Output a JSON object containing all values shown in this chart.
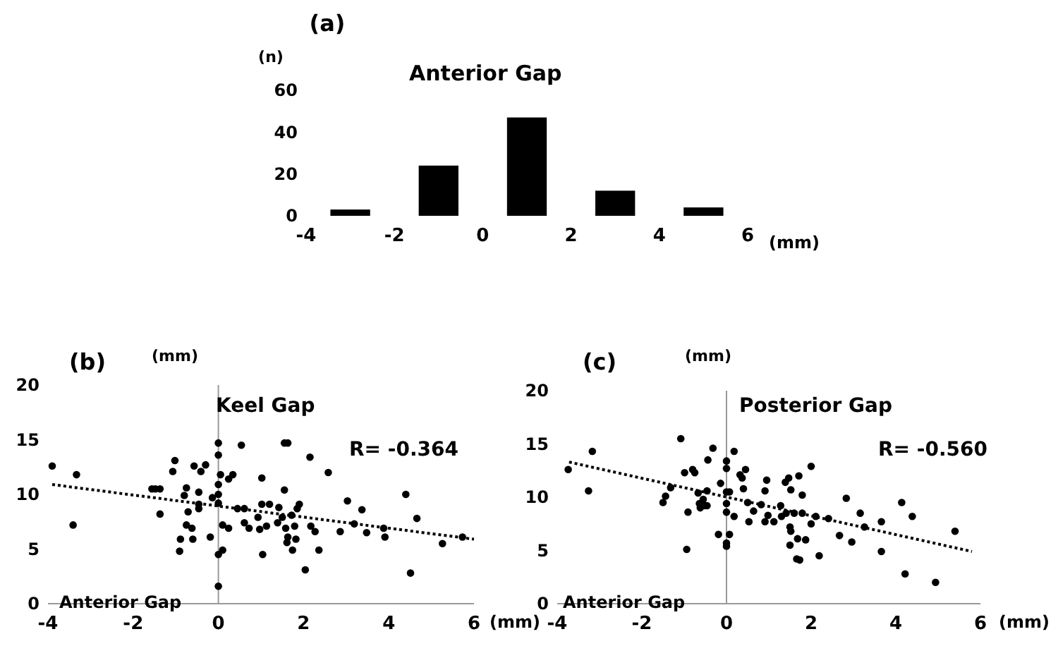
{
  "chart_data": [
    {
      "type": "histogram",
      "title": "Anterior Gap",
      "ylabel": "(n)",
      "xlabel": "(mm)",
      "annotations": [
        "(a)"
      ],
      "bins": [
        -4,
        -2,
        0,
        2,
        4,
        6
      ],
      "values": [
        3,
        24,
        47,
        12,
        4
      ],
      "color": "#000000",
      "xlim": [
        -4,
        6
      ],
      "xticks": [
        -4,
        -2,
        0,
        2,
        4,
        6
      ],
      "ylim": [
        0,
        60
      ],
      "yticks": [
        0,
        20,
        40,
        60
      ],
      "grid": false
    },
    {
      "type": "scatter",
      "title": "Keel Gap",
      "ylabel": "(mm)",
      "xlabel": "(mm)",
      "annotations": [
        "(b)",
        "Anterior Gap",
        "R= -0.364"
      ],
      "xlim": [
        -4,
        6
      ],
      "xticks": [
        -4,
        -2,
        0,
        2,
        4,
        6
      ],
      "ylim": [
        0,
        20
      ],
      "yticks": [
        0,
        5,
        10,
        15,
        20
      ],
      "series": [
        {
          "type": "scatter",
          "marker": "circle",
          "color": "#000000",
          "x": [
            -3.9,
            -3.33,
            -3.41,
            -1.56,
            -1.48,
            -1.37,
            -1.37,
            -1.07,
            -1.02,
            -0.91,
            -0.89,
            -0.8,
            -0.75,
            -0.75,
            -0.71,
            -0.62,
            -0.6,
            -0.57,
            -0.46,
            -0.46,
            -0.46,
            -0.41,
            -0.3,
            -0.19,
            -0.14,
            0,
            0,
            0,
            0,
            0,
            0,
            0,
            0.05,
            0.1,
            0.1,
            0.24,
            0.24,
            0.34,
            0.45,
            0.54,
            0.61,
            0.61,
            0.72,
            0.93,
            0.97,
            1.02,
            1.02,
            1.04,
            1.13,
            1.2,
            1.39,
            1.42,
            1.5,
            1.55,
            1.55,
            1.63,
            1.58,
            1.61,
            1.63,
            1.72,
            1.74,
            1.79,
            1.82,
            1.85,
            1.9,
            2.04,
            2.15,
            2.17,
            2.27,
            2.36,
            2.58,
            2.86,
            3.03,
            3.19,
            3.37,
            3.48,
            3.88,
            3.91,
            4.4,
            4.51,
            4.66,
            5.26,
            5.73
          ],
          "values": [
            12.6,
            11.8,
            7.2,
            10.5,
            10.5,
            10.5,
            8.2,
            12.1,
            13.1,
            4.8,
            5.9,
            9.9,
            10.6,
            7.2,
            8.4,
            6.9,
            5.9,
            12.6,
            10.2,
            9.1,
            8.7,
            12.1,
            12.7,
            6.1,
            9.7,
            9.2,
            10,
            10.9,
            13.6,
            14.7,
            4.5,
            1.6,
            11.8,
            4.9,
            7.2,
            6.9,
            11.4,
            11.8,
            8.7,
            14.5,
            8.7,
            7.4,
            6.9,
            7.9,
            6.8,
            11.5,
            9.1,
            4.5,
            7.1,
            9.1,
            7.4,
            8.8,
            7.9,
            10.4,
            14.7,
            14.7,
            6.9,
            5.6,
            6.1,
            8.1,
            4.9,
            7.1,
            5.9,
            8.7,
            9.1,
            3.1,
            13.4,
            7.1,
            6.6,
            4.9,
            12,
            6.6,
            9.4,
            7.3,
            8.6,
            6.5,
            6.9,
            6.1,
            10,
            2.8,
            7.8,
            5.5,
            6.1
          ]
        },
        {
          "type": "line",
          "color": "#000000",
          "line_style": "dotted",
          "x": [
            -3.9,
            6
          ],
          "values": [
            10.9,
            5.9
          ]
        }
      ]
    },
    {
      "type": "scatter",
      "title": "Posterior Gap",
      "ylabel": "(mm)",
      "xlabel": "(mm)",
      "annotations": [
        "(c)",
        "Anterior Gap",
        "R= -0.560"
      ],
      "xlim": [
        -4,
        6
      ],
      "xticks": [
        -4,
        -2,
        0,
        2,
        4,
        6
      ],
      "ylim": [
        0,
        20
      ],
      "yticks": [
        0,
        5,
        10,
        15,
        20
      ],
      "series": [
        {
          "type": "scatter",
          "marker": "circle",
          "color": "#000000",
          "x": [
            -3.74,
            -3.17,
            -3.26,
            -1.5,
            -1.44,
            -1.32,
            -1.08,
            -0.99,
            -0.94,
            -0.91,
            -0.8,
            -0.75,
            -0.67,
            -0.64,
            -0.62,
            -0.55,
            -0.51,
            -0.46,
            -0.46,
            -0.44,
            -0.32,
            -0.19,
            -0.14,
            0,
            0,
            0,
            0,
            0,
            0,
            0,
            0.07,
            0.07,
            0.18,
            0.18,
            0.32,
            0.37,
            0.4,
            0.45,
            0.5,
            0.53,
            0.64,
            0.82,
            0.91,
            0.91,
            0.95,
            0.98,
            1.12,
            1.28,
            1.3,
            1.39,
            1.41,
            1.47,
            1.5,
            1.52,
            1.5,
            1.52,
            1.6,
            1.68,
            1.66,
            1.73,
            1.71,
            1.79,
            1.79,
            1.87,
            2,
            2,
            2.11,
            2.19,
            2.41,
            2.67,
            2.83,
            2.96,
            3.16,
            3.26,
            3.66,
            3.66,
            4.14,
            4.22,
            4.39,
            4.94,
            5.4
          ],
          "values": [
            12.6,
            14.3,
            10.6,
            9.5,
            10.1,
            10.9,
            15.5,
            12.3,
            5.1,
            8.6,
            12.6,
            12.3,
            10.4,
            9.4,
            9,
            9.8,
            9.2,
            10.6,
            9.2,
            13.5,
            14.6,
            6.5,
            11.3,
            13.4,
            12.7,
            9.4,
            10.5,
            8.6,
            5.7,
            5.4,
            6.5,
            10.5,
            14.3,
            8.2,
            12.1,
            11.8,
            10.8,
            12.6,
            9.5,
            7.7,
            8.7,
            9.3,
            7.7,
            10.6,
            11.6,
            8.3,
            7.7,
            9.2,
            8.2,
            11.4,
            8.5,
            11.8,
            7.2,
            6.8,
            5.5,
            10.7,
            8.5,
            6.1,
            4.2,
            4.1,
            12,
            8.5,
            10.2,
            6,
            12.9,
            7.5,
            8.2,
            4.5,
            8,
            6.4,
            9.9,
            5.8,
            8.5,
            7.2,
            7.7,
            4.9,
            9.5,
            2.8,
            8.2,
            2,
            6.8
          ]
        },
        {
          "type": "line",
          "color": "#000000",
          "line_style": "dotted",
          "x": [
            -3.72,
            5.8
          ],
          "values": [
            13.3,
            4.9
          ]
        }
      ]
    }
  ]
}
